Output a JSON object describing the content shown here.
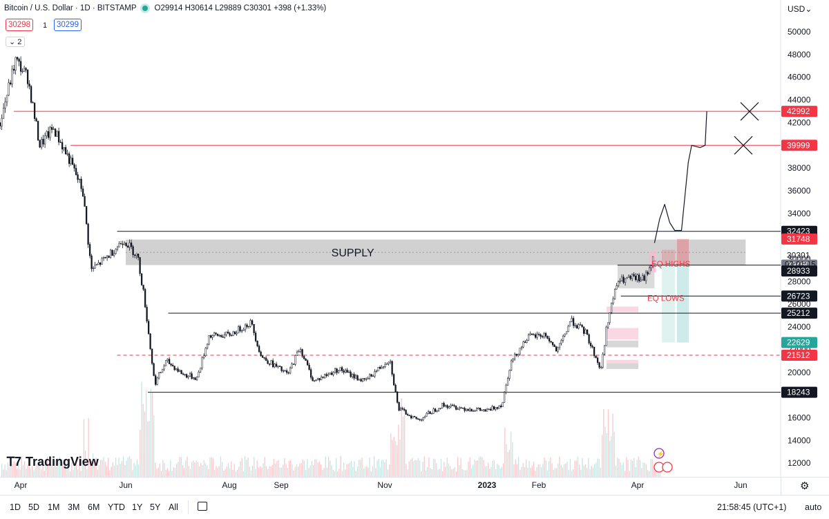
{
  "legend": {
    "title": "Bitcoin / U.S. Dollar · 1D · BITSTAMP",
    "ohlc": "O29914 H30614 L29889 C30301 +398 (+1.33%)"
  },
  "order": {
    "sell": "30298",
    "qty": "1",
    "buy": "30299"
  },
  "collapse_label": "2",
  "currency": "USD",
  "logo_text": "TradingView",
  "bottom_bar": {
    "timeframes": [
      "1D",
      "5D",
      "1M",
      "3M",
      "6M",
      "YTD",
      "1Y",
      "5Y",
      "All"
    ],
    "clock": "21:58:45 (UTC+1)",
    "auto": "auto"
  },
  "chart_data": {
    "type": "candlestick",
    "y_ticks": [
      12000,
      14000,
      16000,
      18000,
      20000,
      22000,
      24000,
      26000,
      28000,
      30000,
      32000,
      34000,
      36000,
      38000,
      40000,
      42000,
      44000,
      46000,
      48000,
      50000
    ],
    "x_ticks": [
      "Apr",
      "Jun",
      "Aug",
      "Sep",
      "Nov",
      "2023",
      "Feb",
      "Apr",
      "Jun"
    ],
    "ylim": [
      10800,
      51000
    ],
    "close_path": [
      [
        "2022-03-20",
        42000
      ],
      [
        "2022-03-29",
        47500
      ],
      [
        "2022-04-05",
        46000
      ],
      [
        "2022-04-12",
        40000
      ],
      [
        "2022-04-20",
        41500
      ],
      [
        "2022-04-30",
        38500
      ],
      [
        "2022-05-07",
        36000
      ],
      [
        "2022-05-12",
        29000
      ],
      [
        "2022-05-20",
        30000
      ],
      [
        "2022-05-31",
        31700
      ],
      [
        "2022-06-08",
        30200
      ],
      [
        "2022-06-12",
        26500
      ],
      [
        "2022-06-18",
        19000
      ],
      [
        "2022-06-25",
        21000
      ],
      [
        "2022-07-05",
        19800
      ],
      [
        "2022-07-13",
        19500
      ],
      [
        "2022-07-20",
        23200
      ],
      [
        "2022-08-01",
        23300
      ],
      [
        "2022-08-14",
        24400
      ],
      [
        "2022-08-20",
        21400
      ],
      [
        "2022-09-05",
        19800
      ],
      [
        "2022-09-12",
        22200
      ],
      [
        "2022-09-20",
        19200
      ],
      [
        "2022-10-05",
        20300
      ],
      [
        "2022-10-20",
        19200
      ],
      [
        "2022-11-04",
        21200
      ],
      [
        "2022-11-09",
        16800
      ],
      [
        "2022-11-21",
        15800
      ],
      [
        "2022-12-05",
        17100
      ],
      [
        "2022-12-20",
        16800
      ],
      [
        "2023-01-01",
        16600
      ],
      [
        "2023-01-10",
        17200
      ],
      [
        "2023-01-15",
        20800
      ],
      [
        "2023-01-25",
        23100
      ],
      [
        "2023-02-05",
        23300
      ],
      [
        "2023-02-12",
        21800
      ],
      [
        "2023-02-20",
        24600
      ],
      [
        "2023-03-01",
        23500
      ],
      [
        "2023-03-10",
        20200
      ],
      [
        "2023-03-14",
        24500
      ],
      [
        "2023-03-20",
        28000
      ],
      [
        "2023-03-29",
        28300
      ],
      [
        "2023-04-05",
        28200
      ],
      [
        "2023-04-11",
        30301
      ]
    ],
    "projection": [
      [
        "2023-04-11",
        31400
      ],
      [
        "2023-04-14",
        33500
      ],
      [
        "2023-04-17",
        34800
      ],
      [
        "2023-04-20",
        33200
      ],
      [
        "2023-04-23",
        32500
      ],
      [
        "2023-04-27",
        32500
      ],
      [
        "2023-05-01",
        38500
      ],
      [
        "2023-05-03",
        39999
      ],
      [
        "2023-05-08",
        39800
      ],
      [
        "2023-05-11",
        39999
      ],
      [
        "2023-05-12",
        42992
      ]
    ],
    "horizontal_levels": [
      {
        "start": "2022-03-28",
        "value": 42992,
        "color": "#f23645",
        "label": "42992"
      },
      {
        "start": "2022-04-30",
        "value": 39999,
        "color": "#f23645",
        "label": "39999"
      },
      {
        "start": "2022-05-27",
        "value": 32423,
        "color": "#131722",
        "label": "32423"
      },
      {
        "start": "2022-06-26",
        "value": 25212,
        "color": "#131722",
        "label": "25212"
      },
      {
        "start": "2022-06-14",
        "value": 18243,
        "color": "#131722",
        "label": "18243"
      },
      {
        "start": "2022-05-27",
        "value": 21512,
        "color": "#f23645",
        "dashed": true,
        "label": "21512"
      },
      {
        "start": "2023-03-20",
        "value": 29450,
        "color": "#131722",
        "label": "29450"
      },
      {
        "start": "2023-03-22",
        "value": 26723,
        "color": "#131722",
        "label": "26723"
      }
    ],
    "price_labels": [
      {
        "value": 31748,
        "label": "31748",
        "bg": "#f23645"
      },
      {
        "value": 28933,
        "label": "28933",
        "bg": "#131722"
      },
      {
        "value": 22629,
        "label": "22629",
        "bg": "#26a69a"
      }
    ],
    "last_price": {
      "value": 30301,
      "label": "30301",
      "countdown": "03:01:15"
    },
    "supply_zone": {
      "label": "SUPPLY",
      "start": "2022-06-01",
      "end": "2023-06-04",
      "top": 31700,
      "bottom": 29450
    },
    "annotations": [
      "EQ HIGHS",
      "EQ LOWS"
    ]
  }
}
